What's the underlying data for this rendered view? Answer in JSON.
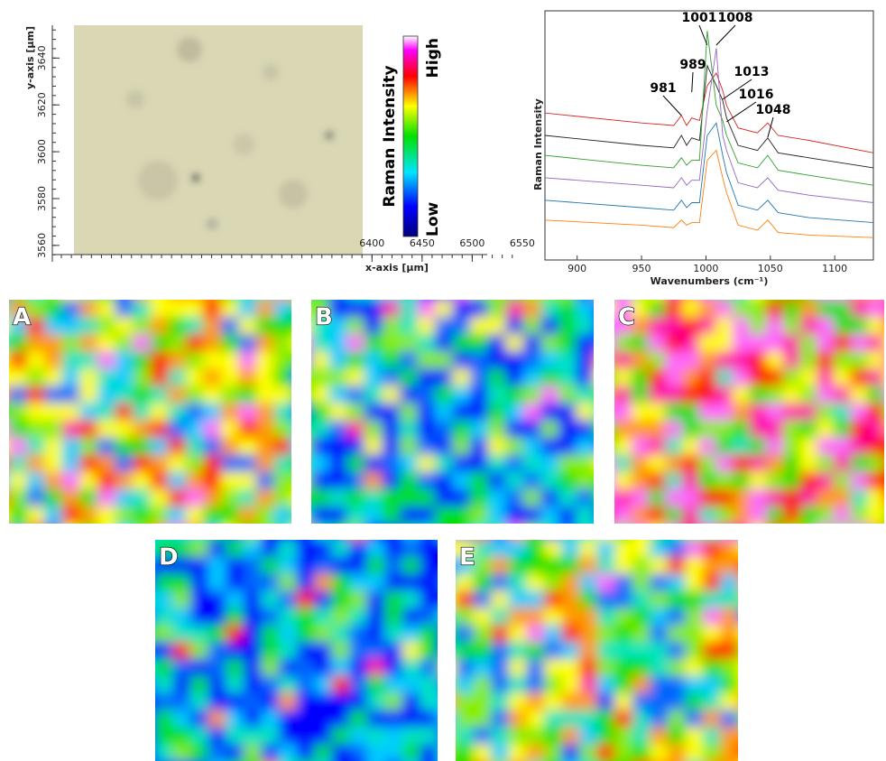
{
  "micrograph": {
    "x_label": "x-axis [µm]",
    "y_label": "y-axis [µm]",
    "xlim": [
      6081,
      6560
    ],
    "xticks": [
      6400,
      6450,
      6500,
      6550
    ],
    "ylim": [
      3553,
      3654
    ],
    "yticks": [
      3560,
      3580,
      3600,
      3620,
      3640
    ]
  },
  "colorbar": {
    "label": "Raman Intensity",
    "high": "High",
    "low": "Low"
  },
  "chart_data": {
    "type": "line",
    "x_label": "Wavenumbers (cm⁻¹)",
    "y_label": "Raman Intensity",
    "x": [
      875,
      950,
      975,
      981,
      985,
      989,
      995,
      1001,
      1008,
      1013,
      1016,
      1025,
      1040,
      1048,
      1056,
      1080,
      1130
    ],
    "xlim": [
      875,
      1130
    ],
    "xticks": [
      900,
      950,
      1000,
      1050,
      1100
    ],
    "ylim": [
      0,
      100
    ],
    "series": [
      {
        "color": "#d62728",
        "values": [
          59,
          55,
          54,
          58,
          54,
          57,
          56,
          70,
          75,
          68,
          62,
          53,
          51,
          55,
          50,
          48,
          43
        ]
      },
      {
        "color": "#222222",
        "values": [
          50,
          46,
          45,
          50,
          46,
          49,
          48,
          78,
          70,
          64,
          57,
          46,
          44,
          49,
          43,
          41,
          37
        ]
      },
      {
        "color": "#2ca02c",
        "values": [
          42,
          38,
          37,
          41,
          38,
          40,
          40,
          92,
          62,
          56,
          50,
          39,
          37,
          42,
          36,
          34,
          30
        ]
      },
      {
        "color": "#9467bd",
        "values": [
          33,
          30,
          29,
          33,
          30,
          32,
          32,
          60,
          85,
          50,
          44,
          31,
          29,
          33,
          28,
          26,
          23
        ]
      },
      {
        "color": "#1f77b4",
        "values": [
          24,
          21,
          20,
          24,
          21,
          23,
          23,
          50,
          55,
          42,
          35,
          22,
          20,
          24,
          19,
          17,
          15
        ]
      },
      {
        "color": "#ff7f0e",
        "values": [
          16,
          14,
          13,
          16,
          14,
          15,
          15,
          40,
          44,
          33,
          27,
          14,
          12,
          16,
          11,
          10,
          9
        ]
      }
    ],
    "annotations": [
      981,
      989,
      1001,
      1008,
      1013,
      1016,
      1048
    ]
  },
  "maps": {
    "panels": [
      {
        "label": "A"
      },
      {
        "label": "B"
      },
      {
        "label": "C"
      },
      {
        "label": "D"
      },
      {
        "label": "E"
      }
    ]
  }
}
